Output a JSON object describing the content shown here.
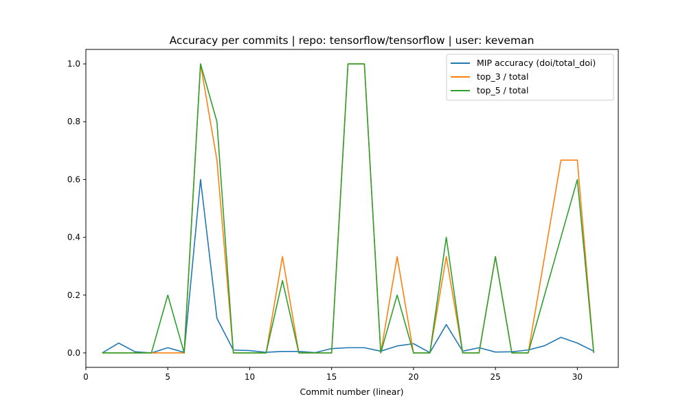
{
  "chart_data": {
    "type": "line",
    "title": "Accuracy per commits | repo: tensorflow/tensorflow | user: keveman",
    "xlabel": "Commit number (linear)",
    "ylabel": "",
    "xlim": [
      0,
      32.5
    ],
    "ylim": [
      -0.05,
      1.05
    ],
    "xticks": [
      0,
      5,
      10,
      15,
      20,
      25,
      30
    ],
    "xtick_labels": [
      "0",
      "5",
      "10",
      "15",
      "20",
      "25",
      "30"
    ],
    "yticks": [
      0.0,
      0.2,
      0.4,
      0.6,
      0.8,
      1.0
    ],
    "ytick_labels": [
      "0.0",
      "0.2",
      "0.4",
      "0.6",
      "0.8",
      "1.0"
    ],
    "grid": false,
    "legend_position": "top-right",
    "x": [
      1,
      2,
      3,
      4,
      5,
      6,
      7,
      8,
      9,
      10,
      11,
      12,
      13,
      14,
      15,
      16,
      17,
      18,
      19,
      20,
      21,
      22,
      23,
      24,
      25,
      26,
      27,
      28,
      29,
      30,
      31
    ],
    "series": [
      {
        "name": "MIP accuracy (doi/total_doi)",
        "color": "#1f77b4",
        "values": [
          0.0,
          0.034,
          0.004,
          0.0,
          0.018,
          0.002,
          0.6,
          0.12,
          0.01,
          0.008,
          0.002,
          0.005,
          0.005,
          0.001,
          0.015,
          0.018,
          0.018,
          0.006,
          0.024,
          0.032,
          0.001,
          0.098,
          0.006,
          0.018,
          0.003,
          0.004,
          0.01,
          0.025,
          0.054,
          0.034,
          0.006
        ]
      },
      {
        "name": "top_3 / total",
        "color": "#ff7f0e",
        "values": [
          0.0,
          0.0,
          0.0,
          0.0,
          0.0,
          0.0,
          1.0,
          0.667,
          0.0,
          0.0,
          0.0,
          0.333,
          0.0,
          0.0,
          0.0,
          1.0,
          1.0,
          0.0,
          0.333,
          0.0,
          0.0,
          0.333,
          0.0,
          0.0,
          0.333,
          0.0,
          0.0,
          0.333,
          0.667,
          0.667,
          0.0
        ]
      },
      {
        "name": "top_5 / total",
        "color": "#2ca02c",
        "values": [
          0.0,
          0.0,
          0.0,
          0.0,
          0.2,
          0.0,
          1.0,
          0.8,
          0.0,
          0.0,
          0.0,
          0.25,
          0.0,
          0.0,
          0.0,
          1.0,
          1.0,
          0.0,
          0.2,
          0.0,
          0.0,
          0.4,
          0.0,
          0.0,
          0.333,
          0.0,
          0.0,
          0.2,
          0.4,
          0.6,
          0.0
        ]
      }
    ]
  }
}
